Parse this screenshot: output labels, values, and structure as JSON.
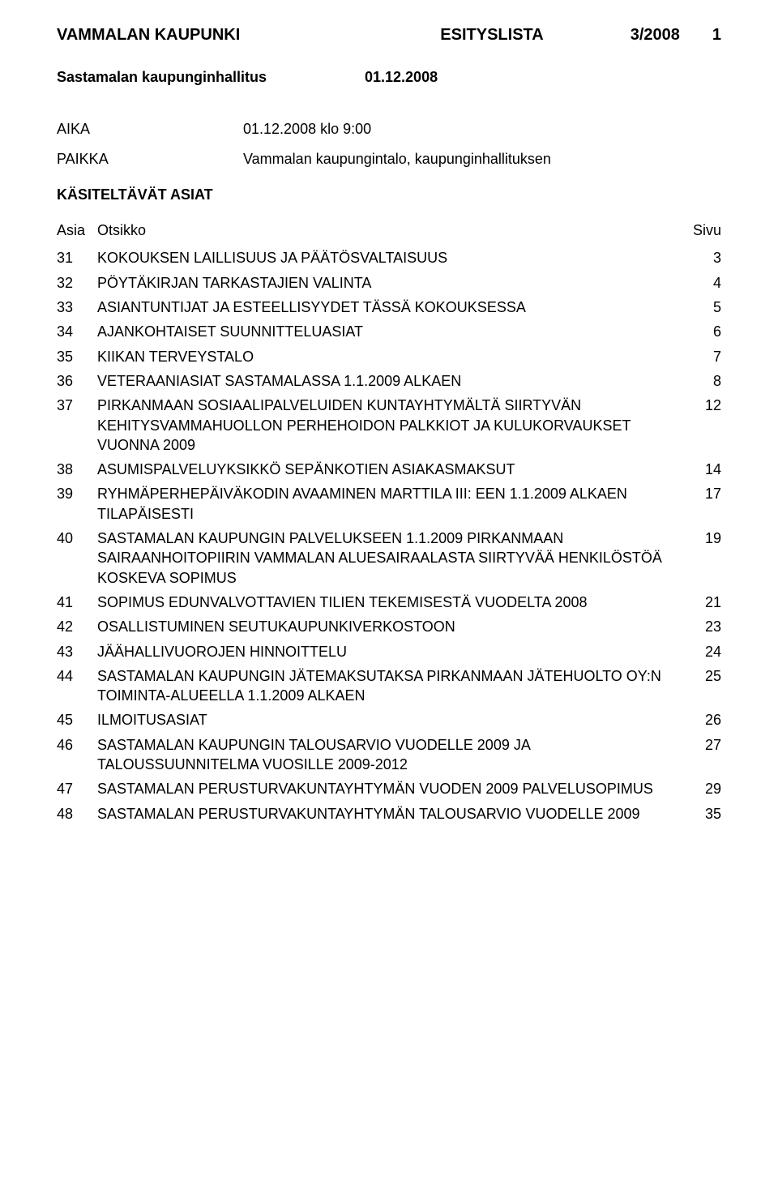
{
  "header": {
    "org": "VAMMALAN KAUPUNKI",
    "doc_type": "ESITYSLISTA",
    "issue": "3/2008",
    "page_num": "1"
  },
  "subheader": {
    "body": "Sastamalan kaupunginhallitus",
    "date": "01.12.2008"
  },
  "meta": {
    "aika_label": "AIKA",
    "aika_value": "01.12.2008 klo 9:00",
    "paikka_label": "PAIKKA",
    "paikka_value": "Vammalan kaupungintalo, kaupunginhallituksen"
  },
  "section_title": "KÄSITELTÄVÄT ASIAT",
  "columns": {
    "num": "Asia",
    "title": "Otsikko",
    "page": "Sivu"
  },
  "items": [
    {
      "num": "31",
      "title": "KOKOUKSEN LAILLISUUS JA PÄÄTÖSVALTAISUUS",
      "page": "3"
    },
    {
      "num": "32",
      "title": "PÖYTÄKIRJAN TARKASTAJIEN VALINTA",
      "page": "4"
    },
    {
      "num": "33",
      "title": "ASIANTUNTIJAT JA ESTEELLISYYDET TÄSSÄ KO­KOUKSESSA",
      "page": "5"
    },
    {
      "num": "34",
      "title": "AJANKOHTAISET SUUNNITTELUASIAT",
      "page": "6"
    },
    {
      "num": "35",
      "title": "KIIKAN TERVEYSTALO",
      "page": "7"
    },
    {
      "num": "36",
      "title": "VETERAANIASIAT SASTAMALASSA 1.1.2009 ALKAEN",
      "page": "8"
    },
    {
      "num": "37",
      "title": "PIRKANMAAN SOSIAALIPALVELUIDEN KUNTAYHTY­MÄLTÄ SIIRTYVÄN  KEHITYSVAMMAHUOLLON PER­HEHOIDON PALKKIOT JA KULUKORVAUKSET VUON­NA 2009",
      "page": "12"
    },
    {
      "num": "38",
      "title": "ASUMISPALVELUYKSIKKÖ SEPÄNKOTIEN  ASIAKAS­MAKSUT",
      "page": "14"
    },
    {
      "num": "39",
      "title": "RYHMÄPERHEPÄIVÄKODIN AVAAMINEN MARTTILA III: EEN 1.1.2009 ALKAEN TILAPÄISESTI",
      "page": "17"
    },
    {
      "num": "40",
      "title": "SASTAMALAN KAUPUNGIN PALVELUKSEEN 1.1.2009 PIRKANMAAN SAIRAANHOITOPIIRIN VAMMALAN ALUESAIRAALASTA SIIRTYVÄÄ HENKILÖSTÖÄ KOS­KEVA SOPIMUS",
      "page": "19"
    },
    {
      "num": "41",
      "title": "SOPIMUS EDUNVALVOTTAVIEN TILIEN TEKEMISES­TÄ VUODELTA 2008",
      "page": "21"
    },
    {
      "num": "42",
      "title": "OSALLISTUMINEN SEUTUKAUPUNKIVERKOSTOON",
      "page": "23"
    },
    {
      "num": "43",
      "title": "JÄÄHALLIVUOROJEN HINNOITTELU",
      "page": "24"
    },
    {
      "num": "44",
      "title": "SASTAMALAN KAUPUNGIN JÄTEMAKSUTAKSA PIR­KANMAAN JÄTEHUOLTO OY:N TOIMINTA-ALUEELLA 1.1.2009 ALKAEN",
      "page": "25"
    },
    {
      "num": "45",
      "title": "ILMOITUSASIAT",
      "page": "26"
    },
    {
      "num": "46",
      "title": "SASTAMALAN KAUPUNGIN TALOUSARVIO VUODEL­LE 2009 JA TALOUSSUUNNITELMA VUOSILLE 2009-2012",
      "page": "27"
    },
    {
      "num": "47",
      "title": "SASTAMALAN PERUSTURVAKUNTAYHTYMÄN VUO­DEN 2009 PALVELUSOPIMUS",
      "page": "29"
    },
    {
      "num": "48",
      "title": "SASTAMALAN PERUSTURVAKUNTAYHTYMÄN TA­LOUSARVIO VUODELLE 2009",
      "page": "35"
    }
  ]
}
